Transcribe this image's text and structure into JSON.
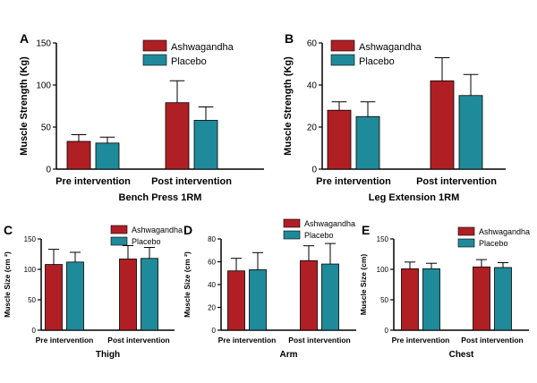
{
  "colors": {
    "ashwagandha": "#b01f24",
    "placebo": "#1f8a9a",
    "axis": "#000000"
  },
  "chart_data": [
    {
      "panel_letter": "A",
      "type": "bar",
      "categories": [
        "Pre intervention",
        "Post intervention"
      ],
      "series": [
        {
          "name": "Ashwagandha",
          "values": [
            33,
            79
          ],
          "error": [
            8,
            26
          ]
        },
        {
          "name": "Placebo",
          "values": [
            31,
            58
          ],
          "error": [
            7,
            16
          ]
        }
      ],
      "xlabel": "Bench Press 1RM",
      "ylabel": "Muscle Strength (Kg)",
      "ylim": [
        0,
        150
      ],
      "yticks": [
        "0",
        "50",
        "100",
        "150"
      ],
      "legend": "top-right"
    },
    {
      "panel_letter": "B",
      "type": "bar",
      "categories": [
        "Pre intervention",
        "Post intervention"
      ],
      "series": [
        {
          "name": "Ashwagandha",
          "values": [
            28,
            42
          ],
          "error": [
            4,
            11
          ]
        },
        {
          "name": "Placebo",
          "values": [
            25,
            35
          ],
          "error": [
            7,
            10
          ]
        }
      ],
      "xlabel": "Leg Extension 1RM",
      "ylabel": "Muscle Strength (Kg)",
      "ylim": [
        0,
        60
      ],
      "yticks": [
        "0",
        "20",
        "40",
        "60"
      ],
      "legend": "top-left"
    },
    {
      "panel_letter": "C",
      "type": "bar",
      "categories": [
        "Pre intervention",
        "Post intervention"
      ],
      "series": [
        {
          "name": "Ashwagandha",
          "values": [
            108,
            117
          ],
          "error": [
            25,
            22
          ]
        },
        {
          "name": "Placebo",
          "values": [
            112,
            118
          ],
          "error": [
            16,
            18
          ]
        }
      ],
      "xlabel": "Thigh",
      "ylabel": "Muscle Size (cm ²)",
      "ylim": [
        0,
        150
      ],
      "yticks": [
        "0",
        "50",
        "100",
        "150"
      ],
      "legend": "top-right"
    },
    {
      "panel_letter": "D",
      "type": "bar",
      "categories": [
        "Pre intervention",
        "Post intervention"
      ],
      "series": [
        {
          "name": "Ashwagandha",
          "values": [
            52,
            61
          ],
          "error": [
            11,
            13
          ]
        },
        {
          "name": "Placebo",
          "values": [
            53,
            58
          ],
          "error": [
            15,
            18
          ]
        }
      ],
      "xlabel": "Arm",
      "ylabel": "Muscle Size (cm ²)",
      "ylim": [
        0,
        80
      ],
      "yticks": [
        "0",
        "20",
        "40",
        "60",
        "80"
      ],
      "legend": "top-right"
    },
    {
      "panel_letter": "E",
      "type": "bar",
      "categories": [
        "Pre intervention",
        "Post intervention"
      ],
      "series": [
        {
          "name": "Ashwagandha",
          "values": [
            101,
            104
          ],
          "error": [
            11,
            12
          ]
        },
        {
          "name": "Placebo",
          "values": [
            101,
            103
          ],
          "error": [
            9,
            8
          ]
        }
      ],
      "xlabel": "Chest",
      "ylabel": "Muscle Size (cm)",
      "ylim": [
        0,
        150
      ],
      "yticks": [
        "0",
        "50",
        "100",
        "150"
      ],
      "legend": "top-right"
    }
  ]
}
